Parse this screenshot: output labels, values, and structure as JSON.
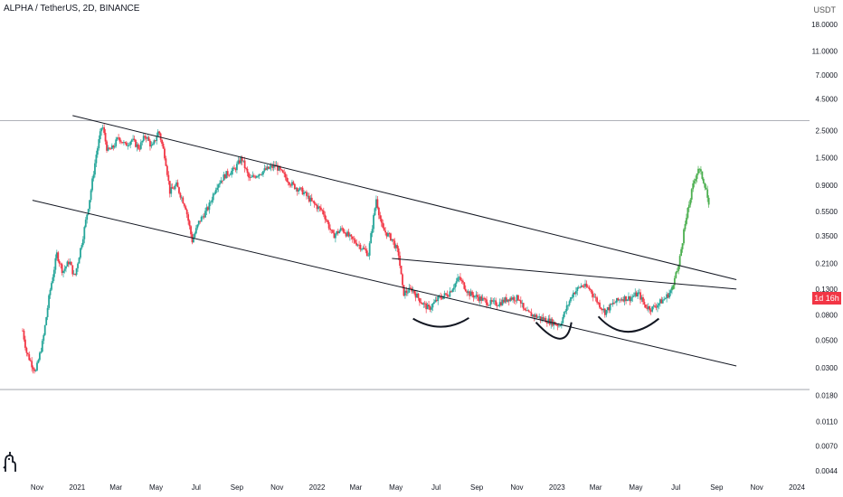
{
  "header": {
    "title": "ALPHA / TetherUS, 2D, BINANCE"
  },
  "price_axis": {
    "unit": "USDT",
    "badge": "1d 16h"
  },
  "colors": {
    "up": "#26a69a",
    "down": "#f23645",
    "projection": "#4caf50",
    "trendline": "#131722",
    "grid": "#e0e3eb",
    "axis_text": "#131722"
  },
  "logo": {
    "name": "tradingview-logo-icon"
  },
  "chart_data": {
    "type": "candlestick",
    "title": "ALPHA / TetherUS, 2D, BINANCE",
    "scale": "log",
    "ylim": [
      0.0044,
      24
    ],
    "y_ticks": [
      18.0,
      11.0,
      7.0,
      4.5,
      2.5,
      1.5,
      0.9,
      0.55,
      0.35,
      0.21,
      0.13,
      0.08,
      0.05,
      0.03,
      0.018,
      0.011,
      0.007,
      0.0044
    ],
    "y_tick_labels": [
      "18.0000",
      "11.0000",
      "7.0000",
      "4.5000",
      "2.5000",
      "1.5000",
      "0.9000",
      "0.5500",
      "0.3500",
      "0.2100",
      "0.1300",
      "0.0800",
      "0.0500",
      "0.0300",
      "0.0180",
      "0.0110",
      "0.0070",
      "0.0044"
    ],
    "x_ticks": [
      "2020-11-01",
      "2021-01-01",
      "2021-03-01",
      "2021-05-01",
      "2021-07-01",
      "2021-09-01",
      "2021-11-01",
      "2022-01-01",
      "2022-03-01",
      "2022-05-01",
      "2022-07-01",
      "2022-09-01",
      "2022-11-01",
      "2023-01-01",
      "2023-03-01",
      "2023-05-01",
      "2023-07-01",
      "2023-09-01",
      "2023-11-01",
      "2024-01-01"
    ],
    "x_tick_labels": [
      "Nov",
      "2021",
      "Mar",
      "May",
      "Jul",
      "Sep",
      "Nov",
      "2022",
      "Mar",
      "May",
      "Jul",
      "Sep",
      "Nov",
      "2023",
      "Mar",
      "May",
      "Jul",
      "Sep",
      "Nov",
      "2024"
    ],
    "horizontal_lines": [
      3.0,
      0.02
    ],
    "price_path": [
      [
        "2020-10-10",
        0.06
      ],
      [
        "2020-10-16",
        0.04
      ],
      [
        "2020-10-24",
        0.032
      ],
      [
        "2020-10-30",
        0.028
      ],
      [
        "2020-11-10",
        0.05
      ],
      [
        "2020-11-20",
        0.12
      ],
      [
        "2020-12-01",
        0.25
      ],
      [
        "2020-12-10",
        0.18
      ],
      [
        "2020-12-20",
        0.22
      ],
      [
        "2020-12-28",
        0.16
      ],
      [
        "2021-01-10",
        0.35
      ],
      [
        "2021-01-20",
        0.7
      ],
      [
        "2021-01-30",
        1.6
      ],
      [
        "2021-02-08",
        2.8
      ],
      [
        "2021-02-16",
        1.7
      ],
      [
        "2021-02-24",
        1.8
      ],
      [
        "2021-03-05",
        2.2
      ],
      [
        "2021-03-15",
        1.9
      ],
      [
        "2021-03-25",
        2.1
      ],
      [
        "2021-04-05",
        1.8
      ],
      [
        "2021-04-15",
        2.3
      ],
      [
        "2021-04-25",
        1.8
      ],
      [
        "2021-05-05",
        2.5
      ],
      [
        "2021-05-15",
        1.5
      ],
      [
        "2021-05-22",
        0.8
      ],
      [
        "2021-06-01",
        0.9
      ],
      [
        "2021-06-15",
        0.6
      ],
      [
        "2021-06-25",
        0.32
      ],
      [
        "2021-07-05",
        0.45
      ],
      [
        "2021-07-20",
        0.6
      ],
      [
        "2021-08-01",
        0.9
      ],
      [
        "2021-08-15",
        1.1
      ],
      [
        "2021-08-28",
        1.2
      ],
      [
        "2021-09-08",
        1.5
      ],
      [
        "2021-09-20",
        1.0
      ],
      [
        "2021-10-01",
        1.1
      ],
      [
        "2021-10-15",
        1.2
      ],
      [
        "2021-10-30",
        1.3
      ],
      [
        "2021-11-10",
        1.1
      ],
      [
        "2021-11-25",
        0.9
      ],
      [
        "2021-12-10",
        0.8
      ],
      [
        "2021-12-25",
        0.65
      ],
      [
        "2022-01-10",
        0.55
      ],
      [
        "2022-01-25",
        0.35
      ],
      [
        "2022-02-08",
        0.4
      ],
      [
        "2022-02-22",
        0.33
      ],
      [
        "2022-03-05",
        0.3
      ],
      [
        "2022-03-20",
        0.25
      ],
      [
        "2022-04-01",
        0.7
      ],
      [
        "2022-04-10",
        0.4
      ],
      [
        "2022-04-25",
        0.33
      ],
      [
        "2022-05-05",
        0.25
      ],
      [
        "2022-05-12",
        0.12
      ],
      [
        "2022-05-25",
        0.13
      ],
      [
        "2022-06-10",
        0.1
      ],
      [
        "2022-06-20",
        0.09
      ],
      [
        "2022-07-05",
        0.11
      ],
      [
        "2022-07-20",
        0.12
      ],
      [
        "2022-08-05",
        0.16
      ],
      [
        "2022-08-20",
        0.12
      ],
      [
        "2022-09-05",
        0.11
      ],
      [
        "2022-09-20",
        0.1
      ],
      [
        "2022-10-05",
        0.1
      ],
      [
        "2022-10-20",
        0.11
      ],
      [
        "2022-11-05",
        0.11
      ],
      [
        "2022-11-12",
        0.085
      ],
      [
        "2022-11-25",
        0.08
      ],
      [
        "2022-12-10",
        0.075
      ],
      [
        "2022-12-25",
        0.07
      ],
      [
        "2023-01-05",
        0.066
      ],
      [
        "2023-01-15",
        0.09
      ],
      [
        "2023-01-25",
        0.12
      ],
      [
        "2023-02-08",
        0.14
      ],
      [
        "2023-02-20",
        0.13
      ],
      [
        "2023-03-05",
        0.1
      ],
      [
        "2023-03-15",
        0.085
      ],
      [
        "2023-03-28",
        0.1
      ],
      [
        "2023-04-10",
        0.11
      ],
      [
        "2023-04-22",
        0.11
      ],
      [
        "2023-05-05",
        0.12
      ],
      [
        "2023-05-15",
        0.095
      ],
      [
        "2023-05-25",
        0.09
      ],
      [
        "2023-06-05",
        0.1
      ],
      [
        "2023-06-15",
        0.11
      ],
      [
        "2023-06-25",
        0.13
      ]
    ],
    "projection_path": [
      [
        "2023-06-25",
        0.13
      ],
      [
        "2023-07-05",
        0.2
      ],
      [
        "2023-07-12",
        0.35
      ],
      [
        "2023-07-20",
        0.6
      ],
      [
        "2023-07-28",
        0.95
      ],
      [
        "2023-08-04",
        1.25
      ],
      [
        "2023-08-10",
        1.05
      ],
      [
        "2023-08-16",
        0.85
      ],
      [
        "2023-08-20",
        0.6
      ]
    ],
    "trendlines": [
      {
        "from": [
          "2020-12-25",
          3.3
        ],
        "to": [
          "2023-10-01",
          0.155
        ]
      },
      {
        "from": [
          "2020-10-25",
          0.68
        ],
        "to": [
          "2023-10-01",
          0.031
        ]
      },
      {
        "from": [
          "2022-04-25",
          0.23
        ],
        "to": [
          "2023-10-01",
          0.13
        ]
      }
    ],
    "curves": [
      {
        "from": [
          "2022-05-27",
          0.075
        ],
        "control": [
          "2022-07-10",
          0.055
        ],
        "to": [
          "2022-08-20",
          0.076
        ]
      },
      {
        "from": [
          "2022-11-30",
          0.07
        ],
        "control": [
          "2023-01-15",
          0.038
        ],
        "to": [
          "2023-01-23",
          0.07
        ]
      },
      {
        "from": [
          "2023-03-05",
          0.078
        ],
        "control": [
          "2023-04-15",
          0.045
        ],
        "to": [
          "2023-06-05",
          0.075
        ]
      }
    ]
  }
}
